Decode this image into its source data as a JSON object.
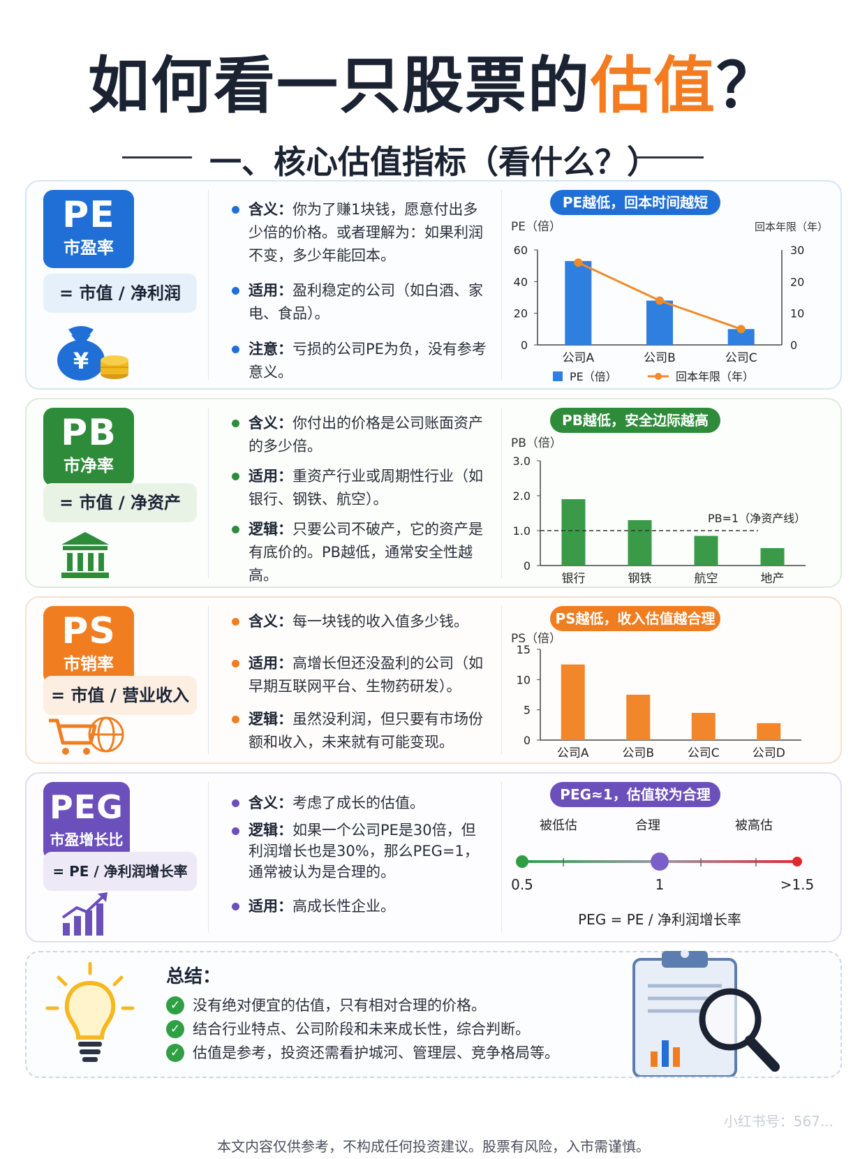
{
  "title": {
    "main": "如何看一只股票的",
    "accent": "估值",
    "end": "？"
  },
  "section_title": "一、核心估值指标（看什么？）",
  "colors": {
    "pe": "#1f6fd6",
    "pb": "#2e8b3a",
    "ps": "#f07d20",
    "peg": "#6b4fbb",
    "dark": "#1b2333"
  },
  "pe": {
    "code": "PE",
    "name": "市盈率",
    "formula": "= 市值 / 净利润",
    "icon": "money-bag-icon",
    "bullets": [
      {
        "label": "含义：",
        "text": "你为了赚1块钱，愿意付出多少倍的价格。或者理解为：如果利润不变，多少年能回本。"
      },
      {
        "label": "适用：",
        "text": "盈利稳定的公司（如白酒、家电、食品）。"
      },
      {
        "label": "注意：",
        "text": "亏损的公司PE为负，没有参考意义。"
      }
    ],
    "pill": "PE越低，回本时间越短",
    "legend_bar": "PE（倍）",
    "legend_line": "回本年限（年）",
    "y_ticks": [
      "0",
      "20",
      "40",
      "60"
    ],
    "y2_ticks": [
      "0",
      "10",
      "20",
      "30"
    ]
  },
  "pb": {
    "code": "PB",
    "name": "市净率",
    "formula": "= 市值 / 净资产",
    "icon": "bank-building-icon",
    "bullets": [
      {
        "label": "含义：",
        "text": "你付出的价格是公司账面资产的多少倍。"
      },
      {
        "label": "适用：",
        "text": "重资产行业或周期性行业（如银行、钢铁、航空）。"
      },
      {
        "label": "逻辑：",
        "text": "只要公司不破产，它的资产是有底价的。PB越低，通常安全性越高。"
      }
    ],
    "pill": "PB越低，安全边际越高",
    "ref_label": "PB=1（净资产线）",
    "y_ticks": [
      "0",
      "1.0",
      "2.0",
      "3.0"
    ]
  },
  "ps": {
    "code": "PS",
    "name": "市销率",
    "formula": "= 市值 / 营业收入",
    "icon": "cart-globe-icon",
    "bullets": [
      {
        "label": "含义：",
        "text": "每一块钱的收入值多少钱。"
      },
      {
        "label": "适用：",
        "text": "高增长但还没盈利的公司（如早期互联网平台、生物药研发）。"
      },
      {
        "label": "逻辑：",
        "text": "虽然没利润，但只要有市场份额和收入，未来就有可能变现。"
      }
    ],
    "pill": "PS越低，收入估值越合理",
    "y_ticks": [
      "0",
      "5",
      "10",
      "15"
    ]
  },
  "peg": {
    "code": "PEG",
    "name": "市盈增长比",
    "formula": "= PE / 净利润增长率",
    "icon": "growth-chart-icon",
    "bullets": [
      {
        "label": "含义：",
        "text": "考虑了成长的估值。"
      },
      {
        "label": "逻辑：",
        "text": "如果一个公司PE是30倍，但利润增长也是30%，那么PEG=1，通常被认为是合理的。"
      },
      {
        "label": "适用：",
        "text": "高成长性企业。"
      }
    ],
    "pill": "PEG≈1，估值较为合理",
    "scale_labels": [
      "被低估",
      "合理",
      "被高估"
    ],
    "scale_values": [
      "0.5",
      "1",
      ">1.5"
    ],
    "formula_caption": "PEG = PE / 净利润增长率"
  },
  "summary": {
    "title": "总结：",
    "items": [
      "没有绝对便宜的估值，只有相对合理的价格。",
      "结合行业特点、公司阶段和未来成长性，综合判断。",
      "估值是参考，投资还需看护城河、管理层、竞争格局等。"
    ],
    "icon_left": "lightbulb-icon",
    "icon_right": "clipboard-magnifier-icon"
  },
  "watermark": "小红书号：567...",
  "footer": "本文内容仅供参考，不构成任何投资建议。股票有风险，入市需谨慎。",
  "chart_data": [
    {
      "type": "bar",
      "title": "PE越低，回本时间越短",
      "categories": [
        "公司A",
        "公司B",
        "公司C"
      ],
      "ylabel": "PE（倍）",
      "y2label": "回本年限（年）",
      "ylim": [
        0,
        60
      ],
      "y2lim": [
        0,
        30
      ],
      "series": [
        {
          "name": "PE（倍）",
          "type": "bar",
          "values": [
            53,
            28,
            10
          ]
        },
        {
          "name": "回本年限（年）",
          "type": "line",
          "axis": "right",
          "values": [
            26,
            14,
            5
          ]
        }
      ],
      "grid": false,
      "legend": "bottom"
    },
    {
      "type": "bar",
      "title": "PB越低，安全边际越高",
      "categories": [
        "银行",
        "钢铁",
        "航空",
        "地产"
      ],
      "ylabel": "PB（倍）",
      "ylim": [
        0,
        3.0
      ],
      "values": [
        1.9,
        1.3,
        0.85,
        0.5
      ],
      "reference_line": {
        "y": 1.0,
        "label": "PB=1（净资产线）"
      },
      "grid": false
    },
    {
      "type": "bar",
      "title": "PS越低，收入估值越合理",
      "categories": [
        "公司A",
        "公司B",
        "公司C",
        "公司D"
      ],
      "ylabel": "PS（倍）",
      "ylim": [
        0,
        15
      ],
      "values": [
        12.5,
        7.5,
        4.5,
        2.8
      ],
      "grid": false
    },
    {
      "type": "scale",
      "title": "PEG≈1，估值较为合理",
      "range": [
        0.5,
        1.5
      ],
      "marker": 1,
      "labels": [
        "被低估",
        "合理",
        "被高估"
      ],
      "ticks": [
        "0.5",
        "1",
        ">1.5"
      ],
      "caption": "PEG = PE / 净利润增长率"
    }
  ]
}
